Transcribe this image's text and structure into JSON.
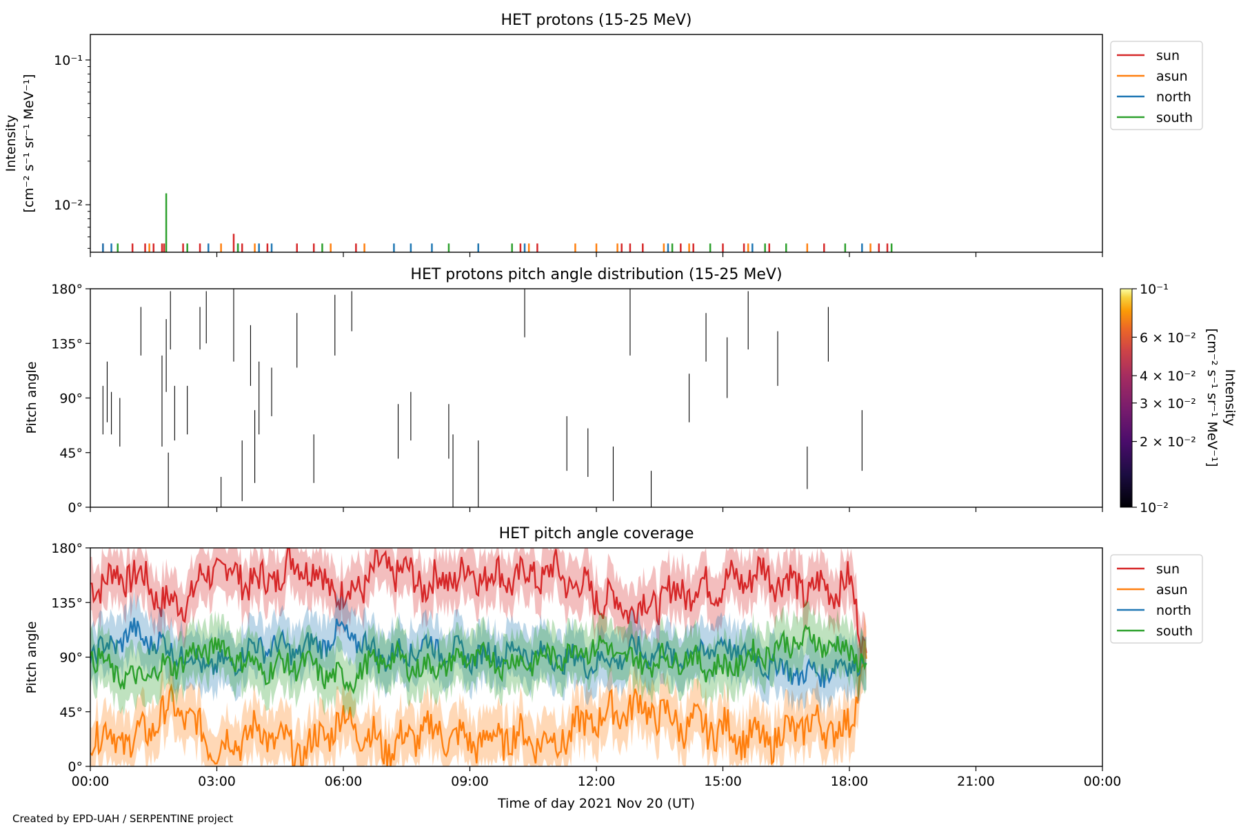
{
  "footer": {
    "credit": "Created by EPD-UAH / SERPENTINE project"
  },
  "xaxis": {
    "label": "Time of day 2021 Nov 20 (UT)",
    "range_hours": [
      0,
      24
    ],
    "tick_labels": [
      "00:00",
      "03:00",
      "06:00",
      "09:00",
      "12:00",
      "15:00",
      "18:00",
      "21:00",
      "00:00"
    ]
  },
  "colors": {
    "sun": "#d62728",
    "asun": "#ff7f0e",
    "north": "#1f77b4",
    "south": "#2ca02c"
  },
  "panels": {
    "intensity": {
      "title": "HET protons (15-25 MeV)",
      "ylabel_line1": "Intensity",
      "ylabel_line2": "[cm⁻² s⁻¹ sr⁻¹ MeV⁻¹]",
      "scale": "log",
      "ylim": [
        0.0047,
        0.15
      ],
      "y_tick_labels": [
        "10⁻¹",
        "10⁻²"
      ],
      "legend": [
        "sun",
        "asun",
        "north",
        "south"
      ],
      "legend_position": "outside-upper-right"
    },
    "pad": {
      "title": "HET protons pitch angle distribution (15-25 MeV)",
      "ylabel": "Pitch angle",
      "ylim": [
        0,
        180
      ],
      "y_tick_labels": [
        "0°",
        "45°",
        "90°",
        "135°",
        "180°"
      ],
      "colorbar": {
        "label_line1": "Intensity",
        "label_line2": "[cm⁻² s⁻¹ sr⁻¹ MeV⁻¹]",
        "scale": "log",
        "range": [
          0.01,
          0.1
        ],
        "colormap": "inferno",
        "tick_labels": [
          "10⁻¹",
          "6 × 10⁻²",
          "4 × 10⁻²",
          "3 × 10⁻²",
          "2 × 10⁻²",
          "10⁻²"
        ]
      }
    },
    "coverage": {
      "title": "HET pitch angle coverage",
      "ylabel": "Pitch angle",
      "ylim": [
        0,
        180
      ],
      "y_tick_labels": [
        "0°",
        "45°",
        "90°",
        "135°",
        "180°"
      ],
      "legend": [
        "sun",
        "asun",
        "north",
        "south"
      ],
      "legend_position": "outside-upper-right"
    }
  },
  "chart_data": [
    {
      "type": "bar",
      "title": "HET protons (15-25 MeV)",
      "xlabel": "",
      "ylabel": "Intensity [cm⁻² s⁻¹ sr⁻¹ MeV⁻¹]",
      "yscale": "log",
      "ylim": [
        0.0047,
        0.15
      ],
      "x_unit": "hours UT",
      "series": [
        {
          "name": "sun",
          "x": [
            0.3,
            1.0,
            1.3,
            1.5,
            1.7,
            1.75,
            2.2,
            2.6,
            3.4,
            3.6,
            4.2,
            4.9,
            5.3,
            6.3,
            10.2,
            10.6,
            12.6,
            12.8,
            13.1,
            14.0,
            14.3,
            15.0,
            15.5,
            16.1,
            17.4,
            18.7,
            18.9
          ],
          "y": [
            0.0054,
            0.0054,
            0.0054,
            0.0054,
            0.0054,
            0.0054,
            0.0054,
            0.0054,
            0.0063,
            0.0054,
            0.0054,
            0.0054,
            0.0054,
            0.0054,
            0.0054,
            0.0054,
            0.0054,
            0.0054,
            0.0054,
            0.0054,
            0.0054,
            0.0054,
            0.0054,
            0.0054,
            0.0054,
            0.0054,
            0.0054
          ]
        },
        {
          "name": "asun",
          "x": [
            1.4,
            3.1,
            3.9,
            5.7,
            6.5,
            9.2,
            10.4,
            11.5,
            12.0,
            12.5,
            13.6,
            14.2,
            15.6,
            17.0,
            18.5
          ],
          "y": [
            0.0054,
            0.0054,
            0.0054,
            0.0054,
            0.0054,
            0.0054,
            0.0054,
            0.0054,
            0.0054,
            0.0054,
            0.0054,
            0.0054,
            0.0054,
            0.0054,
            0.0054
          ]
        },
        {
          "name": "north",
          "x": [
            0.3,
            0.5,
            2.8,
            3.5,
            4.0,
            4.3,
            7.2,
            7.6,
            8.1,
            9.2,
            10.3,
            13.7,
            15.7,
            18.3
          ],
          "y": [
            0.0054,
            0.0054,
            0.0054,
            0.0054,
            0.0054,
            0.0054,
            0.0054,
            0.0054,
            0.0054,
            0.0054,
            0.0054,
            0.0054,
            0.0054,
            0.0054
          ]
        },
        {
          "name": "south",
          "x": [
            0.65,
            1.8,
            2.3,
            3.5,
            5.5,
            8.5,
            10.0,
            13.8,
            14.7,
            16.0,
            16.5,
            17.9,
            19.0
          ],
          "y": [
            0.0054,
            0.012,
            0.0054,
            0.0054,
            0.0054,
            0.0054,
            0.0054,
            0.0054,
            0.0054,
            0.0054,
            0.0054,
            0.0054,
            0.0054
          ]
        }
      ],
      "legend": "outside-upper-right"
    },
    {
      "type": "heatmap",
      "title": "HET protons pitch angle distribution (15-25 MeV)",
      "xlabel": "",
      "ylabel": "Pitch angle",
      "ylim": [
        0,
        180
      ],
      "x_unit": "hours UT",
      "colorbar_range": [
        0.01,
        0.1
      ],
      "segments": [
        {
          "t": 0.3,
          "from": 60,
          "to": 100
        },
        {
          "t": 0.4,
          "from": 70,
          "to": 120
        },
        {
          "t": 0.5,
          "from": 60,
          "to": 95
        },
        {
          "t": 0.7,
          "from": 50,
          "to": 90
        },
        {
          "t": 1.2,
          "from": 125,
          "to": 165
        },
        {
          "t": 1.7,
          "from": 50,
          "to": 125
        },
        {
          "t": 1.8,
          "from": 95,
          "to": 155
        },
        {
          "t": 1.85,
          "from": 0,
          "to": 45
        },
        {
          "t": 1.9,
          "from": 130,
          "to": 178
        },
        {
          "t": 2.0,
          "from": 55,
          "to": 100
        },
        {
          "t": 2.3,
          "from": 60,
          "to": 100
        },
        {
          "t": 2.6,
          "from": 130,
          "to": 165
        },
        {
          "t": 2.75,
          "from": 135,
          "to": 178
        },
        {
          "t": 3.1,
          "from": 0,
          "to": 25
        },
        {
          "t": 3.4,
          "from": 120,
          "to": 180
        },
        {
          "t": 3.6,
          "from": 5,
          "to": 55
        },
        {
          "t": 3.8,
          "from": 100,
          "to": 150
        },
        {
          "t": 3.9,
          "from": 20,
          "to": 80
        },
        {
          "t": 4.0,
          "from": 60,
          "to": 120
        },
        {
          "t": 4.3,
          "from": 75,
          "to": 115
        },
        {
          "t": 4.9,
          "from": 115,
          "to": 160
        },
        {
          "t": 5.3,
          "from": 20,
          "to": 60
        },
        {
          "t": 5.8,
          "from": 125,
          "to": 175
        },
        {
          "t": 6.2,
          "from": 145,
          "to": 178
        },
        {
          "t": 7.3,
          "from": 40,
          "to": 85
        },
        {
          "t": 7.6,
          "from": 55,
          "to": 95
        },
        {
          "t": 8.5,
          "from": 40,
          "to": 85
        },
        {
          "t": 8.6,
          "from": 0,
          "to": 60
        },
        {
          "t": 9.2,
          "from": 0,
          "to": 55
        },
        {
          "t": 10.3,
          "from": 140,
          "to": 180
        },
        {
          "t": 11.3,
          "from": 30,
          "to": 75
        },
        {
          "t": 11.8,
          "from": 25,
          "to": 65
        },
        {
          "t": 12.4,
          "from": 5,
          "to": 50
        },
        {
          "t": 12.8,
          "from": 125,
          "to": 180
        },
        {
          "t": 13.3,
          "from": 0,
          "to": 30
        },
        {
          "t": 14.2,
          "from": 70,
          "to": 110
        },
        {
          "t": 14.6,
          "from": 120,
          "to": 160
        },
        {
          "t": 15.1,
          "from": 90,
          "to": 140
        },
        {
          "t": 15.6,
          "from": 130,
          "to": 178
        },
        {
          "t": 16.3,
          "from": 100,
          "to": 145
        },
        {
          "t": 17.0,
          "from": 15,
          "to": 50
        },
        {
          "t": 17.5,
          "from": 120,
          "to": 165
        },
        {
          "t": 18.3,
          "from": 30,
          "to": 80
        }
      ]
    },
    {
      "type": "line",
      "title": "HET pitch angle coverage",
      "xlabel": "Time of day 2021 Nov 20 (UT)",
      "ylabel": "Pitch angle",
      "ylim": [
        0,
        180
      ],
      "x_unit": "hours UT",
      "xlim": [
        0,
        24
      ],
      "band_halfwidth_deg": 22,
      "series": [
        {
          "name": "sun",
          "times": [
            0,
            1,
            2,
            3,
            4,
            5,
            6,
            7,
            8,
            9,
            10,
            11,
            12,
            13,
            14,
            15,
            16,
            17,
            18,
            18.4
          ],
          "values": [
            150,
            160,
            130,
            165,
            150,
            170,
            140,
            165,
            150,
            160,
            155,
            160,
            140,
            130,
            145,
            150,
            160,
            145,
            150,
            95
          ]
        },
        {
          "name": "asun",
          "times": [
            0,
            1,
            2,
            3,
            4,
            5,
            6,
            7,
            8,
            9,
            10,
            11,
            12,
            13,
            14,
            15,
            16,
            17,
            18,
            18.4
          ],
          "values": [
            30,
            20,
            50,
            15,
            30,
            10,
            40,
            15,
            30,
            20,
            25,
            20,
            40,
            50,
            35,
            30,
            20,
            35,
            30,
            100
          ]
        },
        {
          "name": "north",
          "times": [
            0,
            1,
            2,
            3,
            4,
            5,
            6,
            7,
            8,
            9,
            10,
            11,
            12,
            13,
            14,
            15,
            16,
            17,
            18,
            18.4
          ],
          "values": [
            90,
            110,
            95,
            80,
            100,
            95,
            110,
            90,
            100,
            90,
            95,
            90,
            85,
            95,
            90,
            100,
            85,
            75,
            85,
            90
          ]
        },
        {
          "name": "south",
          "times": [
            0,
            1,
            2,
            3,
            4,
            5,
            6,
            7,
            8,
            9,
            10,
            11,
            12,
            13,
            14,
            15,
            16,
            17,
            18,
            18.4
          ],
          "values": [
            90,
            70,
            85,
            100,
            80,
            85,
            70,
            90,
            80,
            90,
            85,
            90,
            100,
            85,
            90,
            80,
            95,
            105,
            95,
            85
          ]
        }
      ],
      "legend": "outside-upper-right"
    }
  ]
}
